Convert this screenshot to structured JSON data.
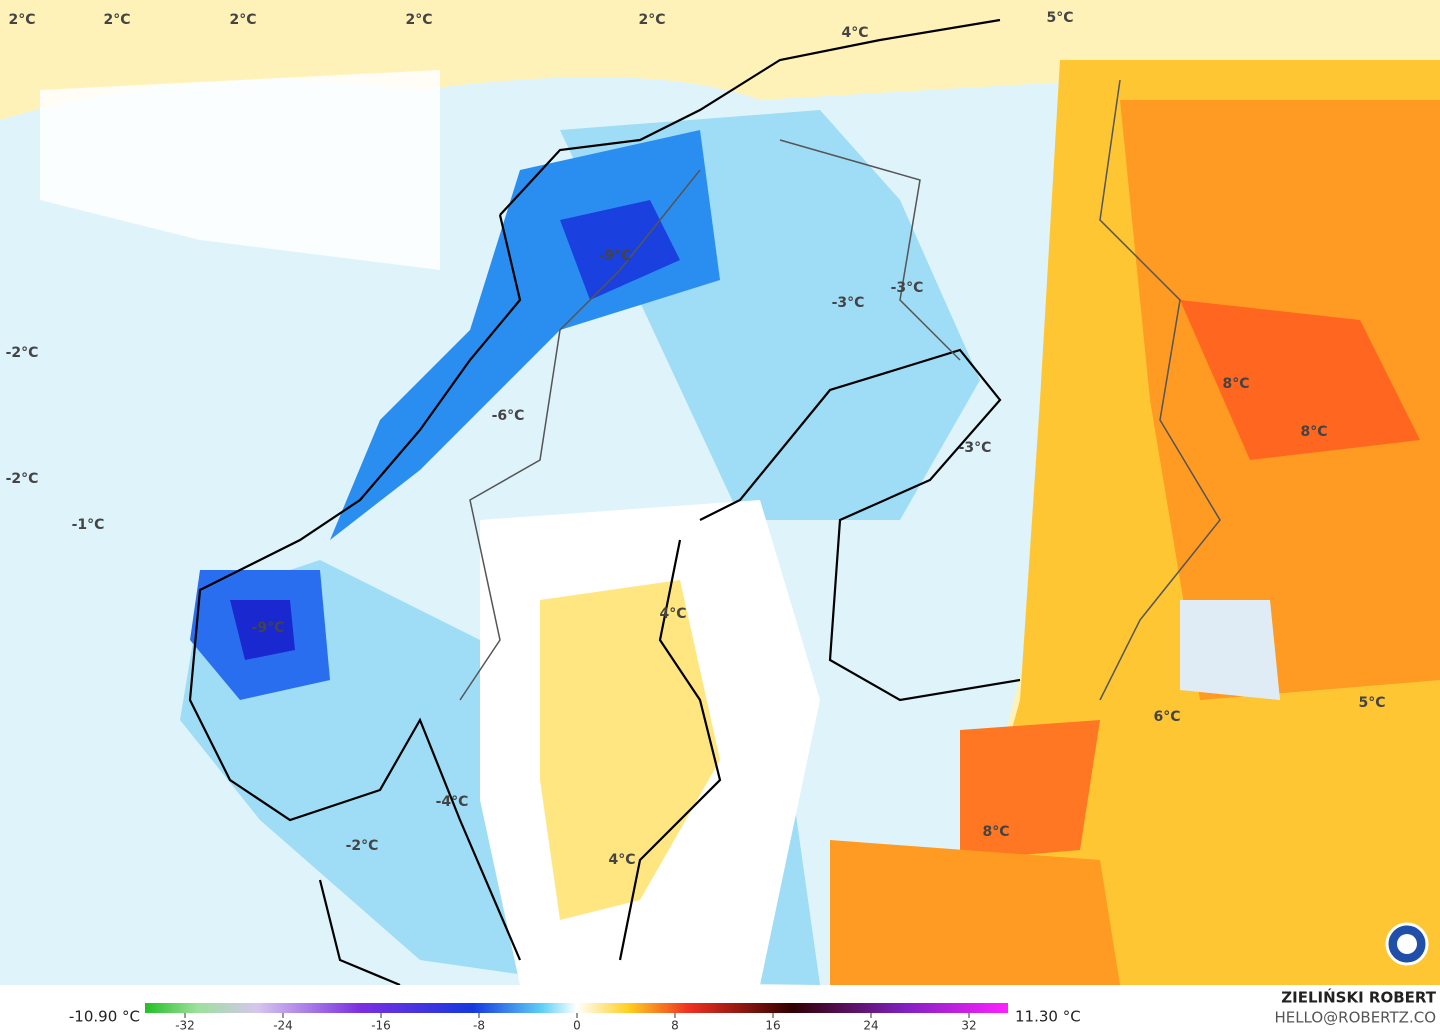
{
  "map": {
    "labels": [
      "2°C",
      "2°C",
      "2°C",
      "2°C",
      "2°C",
      "4°C",
      "5°C",
      "-2°C",
      "-2°C",
      "-1°C",
      "-9°C",
      "-3°C",
      "-3°C",
      "-6°C",
      "-3°C",
      "8°C",
      "8°C",
      "-9°C",
      "4°C",
      "6°C",
      "5°C",
      "-4°C",
      "-2°C",
      "4°C",
      "8°C"
    ]
  },
  "colorbar": {
    "min_label": "-10.90 °C",
    "max_label": "11.30 °C",
    "lim": [
      -32,
      32
    ],
    "ticks": [
      -32,
      -24,
      -16,
      -8,
      0,
      8,
      16,
      24,
      32
    ]
  },
  "credits": {
    "name": "ZIELIŃSKI ROBERT",
    "email": "HELLO@ROBERTZ.CO"
  }
}
